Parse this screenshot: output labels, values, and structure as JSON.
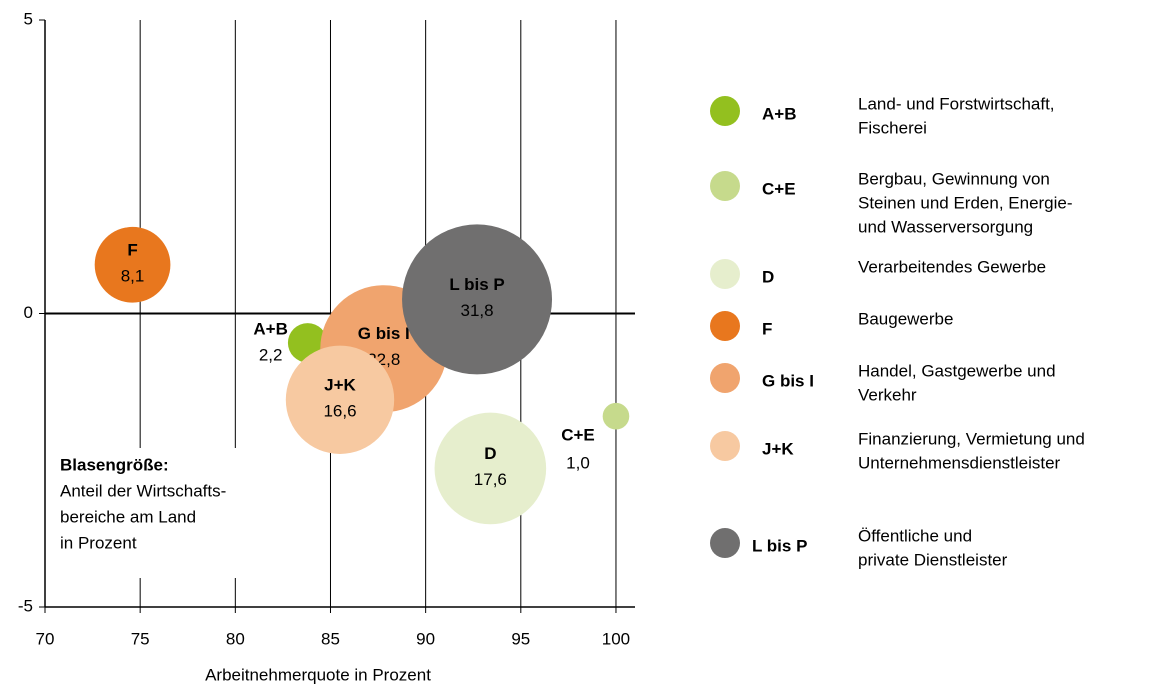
{
  "chart_data": {
    "type": "bubble",
    "x_label": "Arbeitnehmerquote in Prozent",
    "xlim": [
      70,
      101
    ],
    "xticks": [
      70,
      75,
      80,
      85,
      90,
      95,
      100
    ],
    "ylim": [
      -5,
      5
    ],
    "yticks": [
      -5,
      0,
      5
    ],
    "note": {
      "title": "Blasengröße:",
      "lines": [
        "Anteil der Wirtschafts-",
        "bereiche am Land",
        "in Prozent"
      ]
    },
    "points": [
      {
        "label": "A+B",
        "x": 83.8,
        "y": -0.5,
        "size": 2.2,
        "size_label": "2,2",
        "color": "#93c01f",
        "description": [
          "Land- und Forstwirtschaft,",
          "Fischerei"
        ]
      },
      {
        "label": "C+E",
        "x": 100,
        "y": -1.75,
        "size": 1.0,
        "size_label": "1,0",
        "color": "#c6da8c",
        "description": [
          "Bergbau, Gewinnung von",
          "Steinen und Erden,  Energie-",
          "und Wasserversorgung"
        ]
      },
      {
        "label": "D",
        "x": 93.4,
        "y": -2.64,
        "size": 17.6,
        "size_label": "17,6",
        "color": "#e6eecd",
        "description": [
          "Verarbeitendes Gewerbe"
        ]
      },
      {
        "label": "F",
        "x": 74.6,
        "y": 0.83,
        "size": 8.1,
        "size_label": "8,1",
        "color": "#e8771e",
        "description": [
          "Baugewerbe"
        ]
      },
      {
        "label": "G bis I",
        "x": 87.8,
        "y": -0.6,
        "size": 22.8,
        "size_label": "22,8",
        "color": "#f0a46e",
        "description": [
          "Handel, Gastgewerbe und",
          "Verkehr"
        ]
      },
      {
        "label": "J+K",
        "x": 85.5,
        "y": -1.47,
        "size": 16.6,
        "size_label": "16,6",
        "color": "#f7c9a1",
        "description": [
          "Finanzierung, Vermietung und",
          "Unternehmensdienstleister"
        ]
      },
      {
        "label": "L bis P",
        "x": 92.7,
        "y": 0.24,
        "size": 31.8,
        "size_label": "31,8",
        "color": "#706f6f",
        "description": [
          "Öffentliche und",
          "private Dienstleister"
        ]
      }
    ]
  }
}
